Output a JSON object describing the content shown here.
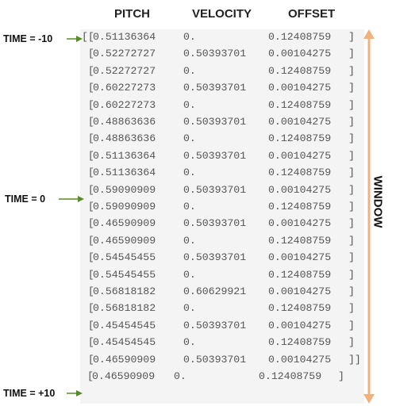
{
  "headers": {
    "pitch": "PITCH",
    "velocity": "VELOCITY",
    "offset": "OFFSET"
  },
  "time_labels": {
    "start": "TIME = -10",
    "zero": "TIME = 0",
    "end": "TIME = +10"
  },
  "window_label": "WINDOW",
  "colors": {
    "time_arrow": "#5a8a2a",
    "window_arrow": "#f0b27a",
    "panel": "#f4f4f4"
  },
  "rows": [
    {
      "prefix": "[[",
      "pitch": "0.51136364",
      "velocity": "0.",
      "offset": "0.12408759",
      "suffix": "]"
    },
    {
      "prefix": " [",
      "pitch": "0.52272727",
      "velocity": "0.50393701",
      "offset": "0.00104275",
      "suffix": "]"
    },
    {
      "prefix": " [",
      "pitch": "0.52272727",
      "velocity": "0.",
      "offset": "0.12408759",
      "suffix": "]"
    },
    {
      "prefix": " [",
      "pitch": "0.60227273",
      "velocity": "0.50393701",
      "offset": "0.00104275",
      "suffix": "]"
    },
    {
      "prefix": " [",
      "pitch": "0.60227273",
      "velocity": "0.",
      "offset": "0.12408759",
      "suffix": "]"
    },
    {
      "prefix": " [",
      "pitch": "0.48863636",
      "velocity": "0.50393701",
      "offset": "0.00104275",
      "suffix": "]"
    },
    {
      "prefix": " [",
      "pitch": "0.48863636",
      "velocity": "0.",
      "offset": "0.12408759",
      "suffix": "]"
    },
    {
      "prefix": " [",
      "pitch": "0.51136364",
      "velocity": "0.50393701",
      "offset": "0.00104275",
      "suffix": "]"
    },
    {
      "prefix": " [",
      "pitch": "0.51136364",
      "velocity": "0.",
      "offset": "0.12408759",
      "suffix": "]"
    },
    {
      "prefix": " [",
      "pitch": "0.59090909",
      "velocity": "0.50393701",
      "offset": "0.00104275",
      "suffix": "]"
    },
    {
      "prefix": " [",
      "pitch": "0.59090909",
      "velocity": "0.",
      "offset": "0.12408759",
      "suffix": "]"
    },
    {
      "prefix": " [",
      "pitch": "0.46590909",
      "velocity": "0.50393701",
      "offset": "0.00104275",
      "suffix": "]"
    },
    {
      "prefix": " [",
      "pitch": "0.46590909",
      "velocity": "0.",
      "offset": "0.12408759",
      "suffix": "]"
    },
    {
      "prefix": " [",
      "pitch": "0.54545455",
      "velocity": "0.50393701",
      "offset": "0.00104275",
      "suffix": "]"
    },
    {
      "prefix": " [",
      "pitch": "0.54545455",
      "velocity": "0.",
      "offset": "0.12408759",
      "suffix": "]"
    },
    {
      "prefix": " [",
      "pitch": "0.56818182",
      "velocity": "0.60629921",
      "offset": "0.00104275",
      "suffix": "]"
    },
    {
      "prefix": " [",
      "pitch": "0.56818182",
      "velocity": "0.",
      "offset": "0.12408759",
      "suffix": "]"
    },
    {
      "prefix": " [",
      "pitch": "0.45454545",
      "velocity": "0.50393701",
      "offset": "0.00104275",
      "suffix": "]"
    },
    {
      "prefix": " [",
      "pitch": "0.45454545",
      "velocity": "0.",
      "offset": "0.12408759",
      "suffix": "]"
    },
    {
      "prefix": " [",
      "pitch": "0.46590909",
      "velocity": "0.50393701",
      "offset": "0.00104275",
      "suffix": "]]"
    },
    {
      "prefix": "[",
      "pitch": "0.46590909",
      "velocity": "0.",
      "offset": "0.12408759",
      "suffix": "]"
    }
  ]
}
